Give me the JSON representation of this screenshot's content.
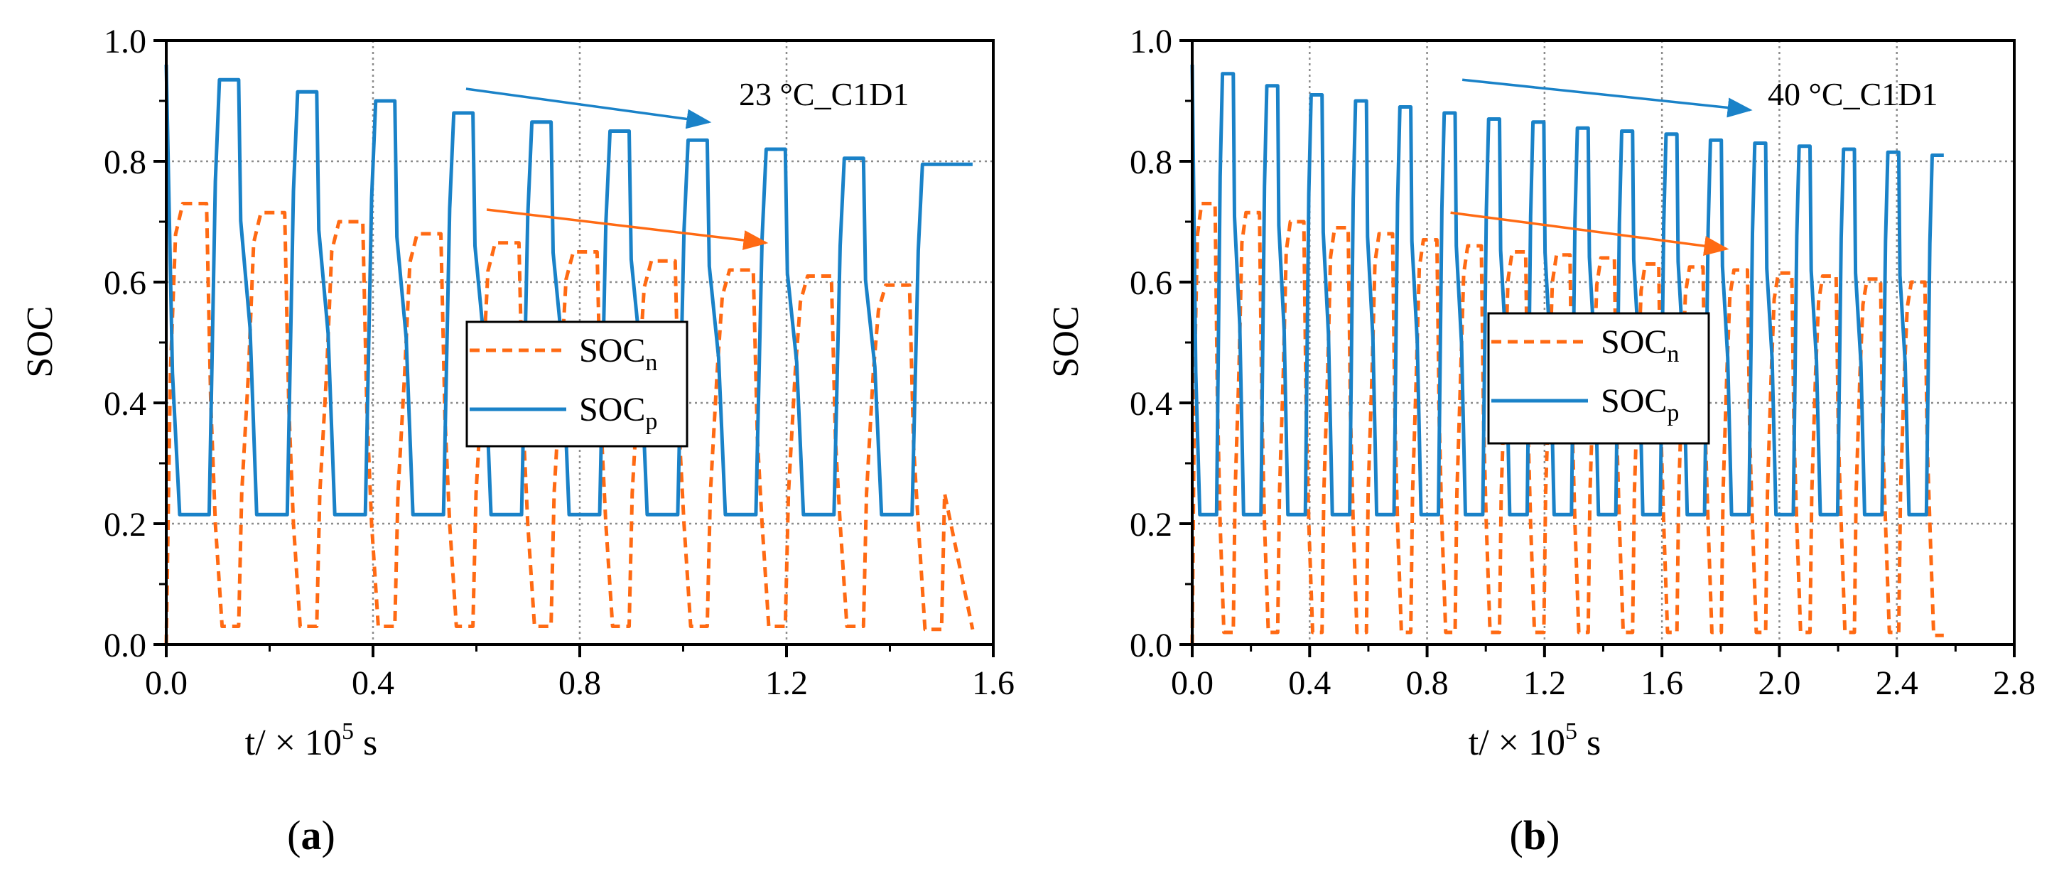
{
  "figure": {
    "colors": {
      "soc_n": "#ff6a13",
      "soc_p": "#1a82c8",
      "axis": "#000000",
      "grid": "#8c8c8c"
    }
  },
  "chart_data": [
    {
      "type": "line",
      "panel_label": "a",
      "ylabel": "SOC",
      "xlabel": "t/ × 10^5 s",
      "xlim": [
        0.0,
        1.6
      ],
      "ylim": [
        0.0,
        1.0
      ],
      "x_ticks": [
        "0.0",
        "0.4",
        "0.8",
        "1.2",
        "1.6"
      ],
      "y_ticks": [
        "0.0",
        "0.2",
        "0.4",
        "0.6",
        "0.8",
        "1.0"
      ],
      "grid": true,
      "annotation": "23 °C_C1D1",
      "legend_position": "center",
      "series": [
        {
          "name": "SOCn",
          "label_main": "SOC",
          "label_sub": "n",
          "style": "dashed",
          "start": 0.0,
          "cycles": [
            {
              "t0": 0.0,
              "high": 0.73,
              "low": 0.03
            },
            {
              "t0": 0.1511,
              "high": 0.715,
              "low": 0.03
            },
            {
              "t0": 0.3022,
              "high": 0.7,
              "low": 0.03
            },
            {
              "t0": 0.4533,
              "high": 0.68,
              "low": 0.03
            },
            {
              "t0": 0.6044,
              "high": 0.665,
              "low": 0.03
            },
            {
              "t0": 0.7555,
              "high": 0.65,
              "low": 0.03
            },
            {
              "t0": 0.9066,
              "high": 0.635,
              "low": 0.03
            },
            {
              "t0": 1.0577,
              "high": 0.62,
              "low": 0.03
            },
            {
              "t0": 1.2088,
              "high": 0.61,
              "low": 0.03
            },
            {
              "t0": 1.3599,
              "high": 0.595,
              "low": 0.025
            }
          ],
          "end": 1.56
        },
        {
          "name": "SOCp",
          "label_main": "SOC",
          "label_sub": "p",
          "style": "solid",
          "start": 0.96,
          "cycles": [
            {
              "t0": 0.0,
              "high": 0.935,
              "low": 0.215
            },
            {
              "t0": 0.1511,
              "high": 0.915,
              "low": 0.215
            },
            {
              "t0": 0.3022,
              "high": 0.9,
              "low": 0.215
            },
            {
              "t0": 0.4533,
              "high": 0.88,
              "low": 0.215
            },
            {
              "t0": 0.6044,
              "high": 0.865,
              "low": 0.215
            },
            {
              "t0": 0.7555,
              "high": 0.85,
              "low": 0.215
            },
            {
              "t0": 0.9066,
              "high": 0.835,
              "low": 0.215
            },
            {
              "t0": 1.0577,
              "high": 0.82,
              "low": 0.215
            },
            {
              "t0": 1.2088,
              "high": 0.805,
              "low": 0.215
            },
            {
              "t0": 1.3599,
              "high": 0.795,
              "low": 0.215
            }
          ],
          "end": 1.56
        }
      ],
      "arrows": [
        {
          "series": "SOCp",
          "from": [
            0.58,
            0.92
          ],
          "to": [
            1.05,
            0.865
          ]
        },
        {
          "series": "SOCn",
          "from": [
            0.62,
            0.72
          ],
          "to": [
            1.16,
            0.665
          ]
        }
      ]
    },
    {
      "type": "line",
      "panel_label": "b",
      "ylabel": "SOC",
      "xlabel": "t/ × 10^5 s",
      "xlim": [
        0.0,
        2.8
      ],
      "ylim": [
        0.0,
        1.0
      ],
      "x_ticks": [
        "0.0",
        "0.4",
        "0.8",
        "1.2",
        "1.6",
        "2.0",
        "2.4",
        "2.8"
      ],
      "y_ticks": [
        "0.0",
        "0.2",
        "0.4",
        "0.6",
        "0.8",
        "1.0"
      ],
      "grid": true,
      "annotation": "40 °C_C1D1",
      "legend_position": "center-left",
      "series": [
        {
          "name": "SOCn",
          "label_main": "SOC",
          "label_sub": "n",
          "style": "dashed",
          "start": 0.0,
          "cycles": [
            {
              "t0": 0.0,
              "high": 0.73,
              "low": 0.02
            },
            {
              "t0": 0.1511,
              "high": 0.715,
              "low": 0.02
            },
            {
              "t0": 0.3022,
              "high": 0.7,
              "low": 0.02
            },
            {
              "t0": 0.4533,
              "high": 0.69,
              "low": 0.02
            },
            {
              "t0": 0.6044,
              "high": 0.68,
              "low": 0.02
            },
            {
              "t0": 0.7555,
              "high": 0.67,
              "low": 0.02
            },
            {
              "t0": 0.9066,
              "high": 0.66,
              "low": 0.02
            },
            {
              "t0": 1.0577,
              "high": 0.65,
              "low": 0.02
            },
            {
              "t0": 1.2088,
              "high": 0.645,
              "low": 0.02
            },
            {
              "t0": 1.3599,
              "high": 0.64,
              "low": 0.02
            },
            {
              "t0": 1.511,
              "high": 0.63,
              "low": 0.02
            },
            {
              "t0": 1.6621,
              "high": 0.625,
              "low": 0.02
            },
            {
              "t0": 1.8132,
              "high": 0.62,
              "low": 0.02
            },
            {
              "t0": 1.9643,
              "high": 0.615,
              "low": 0.02
            },
            {
              "t0": 2.1154,
              "high": 0.61,
              "low": 0.02
            },
            {
              "t0": 2.2665,
              "high": 0.605,
              "low": 0.02
            },
            {
              "t0": 2.4176,
              "high": 0.6,
              "low": 0.015
            }
          ],
          "end": 2.56
        },
        {
          "name": "SOCp",
          "label_main": "SOC",
          "label_sub": "p",
          "style": "solid",
          "start": 0.96,
          "cycles": [
            {
              "t0": 0.0,
              "high": 0.945,
              "low": 0.215
            },
            {
              "t0": 0.1511,
              "high": 0.925,
              "low": 0.215
            },
            {
              "t0": 0.3022,
              "high": 0.91,
              "low": 0.215
            },
            {
              "t0": 0.4533,
              "high": 0.9,
              "low": 0.215
            },
            {
              "t0": 0.6044,
              "high": 0.89,
              "low": 0.215
            },
            {
              "t0": 0.7555,
              "high": 0.88,
              "low": 0.215
            },
            {
              "t0": 0.9066,
              "high": 0.87,
              "low": 0.215
            },
            {
              "t0": 1.0577,
              "high": 0.865,
              "low": 0.215
            },
            {
              "t0": 1.2088,
              "high": 0.855,
              "low": 0.215
            },
            {
              "t0": 1.3599,
              "high": 0.85,
              "low": 0.215
            },
            {
              "t0": 1.511,
              "high": 0.845,
              "low": 0.215
            },
            {
              "t0": 1.6621,
              "high": 0.835,
              "low": 0.215
            },
            {
              "t0": 1.8132,
              "high": 0.83,
              "low": 0.215
            },
            {
              "t0": 1.9643,
              "high": 0.825,
              "low": 0.215
            },
            {
              "t0": 2.1154,
              "high": 0.82,
              "low": 0.215
            },
            {
              "t0": 2.2665,
              "high": 0.815,
              "low": 0.215
            },
            {
              "t0": 2.4176,
              "high": 0.81,
              "low": 0.215
            }
          ],
          "end": 2.56
        }
      ],
      "arrows": [
        {
          "series": "SOCp",
          "from": [
            0.92,
            0.935
          ],
          "to": [
            1.9,
            0.885
          ]
        },
        {
          "series": "SOCn",
          "from": [
            0.88,
            0.715
          ],
          "to": [
            1.82,
            0.655
          ]
        }
      ]
    }
  ]
}
